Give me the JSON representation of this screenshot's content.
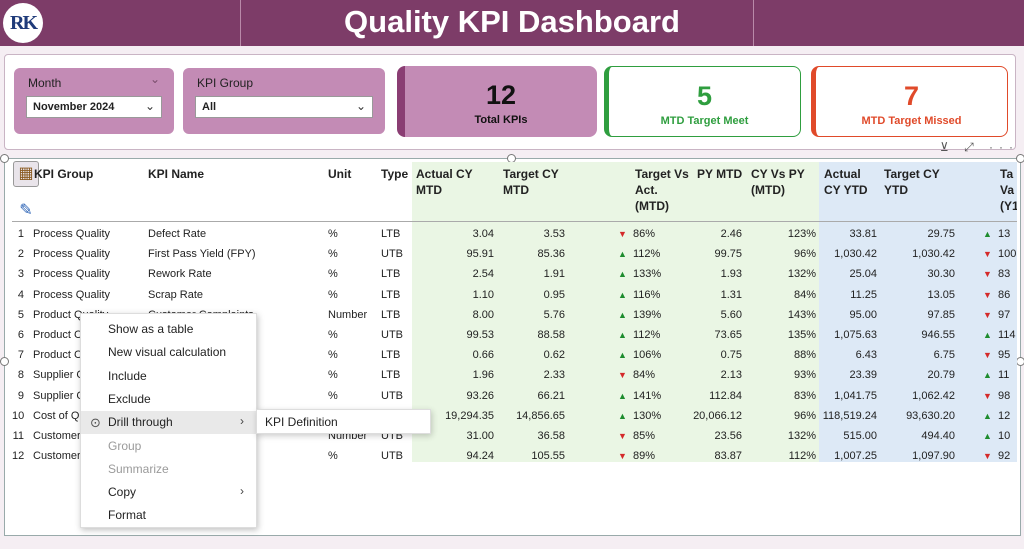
{
  "header": {
    "title": "Quality KPI Dashboard",
    "logo_text": "RK"
  },
  "slicers": {
    "month": {
      "label": "Month",
      "value": "November 2024"
    },
    "kpi_group": {
      "label": "KPI Group",
      "value": "All"
    }
  },
  "cards": {
    "total": {
      "value": "12",
      "label": "Total KPIs",
      "color": "#c38bb5"
    },
    "meet": {
      "value": "5",
      "label": "MTD Target Meet",
      "color": "#2f9e3f"
    },
    "missed": {
      "value": "7",
      "label": "MTD Target Missed",
      "color": "#e04a2a"
    }
  },
  "table": {
    "headers": {
      "kpi_group": "KPI Group",
      "kpi_name": "KPI Name",
      "unit": "Unit",
      "type": "Type",
      "actual_mtd": [
        "Actual CY",
        "MTD"
      ],
      "target_mtd": [
        "Target CY",
        "MTD"
      ],
      "tva_mtd": [
        "Target Vs",
        "Act.",
        "(MTD)"
      ],
      "py_mtd": "PY MTD",
      "cyvspy_mtd": [
        "CY Vs PY",
        "(MTD)"
      ],
      "actual_ytd": [
        "Actual",
        "CY YTD"
      ],
      "target_ytd": [
        "Target CY",
        "YTD"
      ],
      "tva_ytd": [
        "Ta",
        "Va",
        "(Y1"
      ]
    },
    "rows": [
      {
        "n": "1",
        "group": "Process Quality",
        "name": "Defect Rate",
        "unit": "%",
        "type": "LTB",
        "act": "3.04",
        "tgt": "3.53",
        "ind": "dn",
        "tva": "86%",
        "py": "2.46",
        "cvp": "123%",
        "aytd": "33.81",
        "tytd": "29.75",
        "ind2": "up",
        "tva2": "13"
      },
      {
        "n": "2",
        "group": "Process Quality",
        "name": "First Pass Yield (FPY)",
        "unit": "%",
        "type": "UTB",
        "act": "95.91",
        "tgt": "85.36",
        "ind": "up",
        "tva": "112%",
        "py": "99.75",
        "cvp": "96%",
        "aytd": "1,030.42",
        "tytd": "1,030.42",
        "ind2": "dn",
        "tva2": "100"
      },
      {
        "n": "3",
        "group": "Process Quality",
        "name": "Rework Rate",
        "unit": "%",
        "type": "LTB",
        "act": "2.54",
        "tgt": "1.91",
        "ind": "up",
        "tva": "133%",
        "py": "1.93",
        "cvp": "132%",
        "aytd": "25.04",
        "tytd": "30.30",
        "ind2": "dn",
        "tva2": "83"
      },
      {
        "n": "4",
        "group": "Process Quality",
        "name": "Scrap Rate",
        "unit": "%",
        "type": "LTB",
        "act": "1.10",
        "tgt": "0.95",
        "ind": "up",
        "tva": "116%",
        "py": "1.31",
        "cvp": "84%",
        "aytd": "11.25",
        "tytd": "13.05",
        "ind2": "dn",
        "tva2": "86"
      },
      {
        "n": "5",
        "group": "Product Quality",
        "name": "Customer Complaints",
        "unit": "Number",
        "type": "LTB",
        "act": "8.00",
        "tgt": "5.76",
        "ind": "up",
        "tva": "139%",
        "py": "5.60",
        "cvp": "143%",
        "aytd": "95.00",
        "tytd": "97.85",
        "ind2": "dn",
        "tva2": "97"
      },
      {
        "n": "6",
        "group": "Product C",
        "name": "",
        "unit": "%",
        "type": "UTB",
        "act": "99.53",
        "tgt": "88.58",
        "ind": "up",
        "tva": "112%",
        "py": "73.65",
        "cvp": "135%",
        "aytd": "1,075.63",
        "tytd": "946.55",
        "ind2": "up",
        "tva2": "114"
      },
      {
        "n": "7",
        "group": "Product C",
        "name": "",
        "unit": "%",
        "type": "LTB",
        "act": "0.66",
        "tgt": "0.62",
        "ind": "up",
        "tva": "106%",
        "py": "0.75",
        "cvp": "88%",
        "aytd": "6.43",
        "tytd": "6.75",
        "ind2": "dn",
        "tva2": "95"
      },
      {
        "n": "8",
        "group": "Supplier C",
        "name": "",
        "unit": "%",
        "type": "LTB",
        "act": "1.96",
        "tgt": "2.33",
        "ind": "dn",
        "tva": "84%",
        "py": "2.13",
        "cvp": "93%",
        "aytd": "23.39",
        "tytd": "20.79",
        "ind2": "up",
        "tva2": "11"
      },
      {
        "n": "9",
        "group": "Supplier C",
        "name": "very Rate",
        "unit": "%",
        "type": "UTB",
        "act": "93.26",
        "tgt": "66.21",
        "ind": "up",
        "tva": "141%",
        "py": "112.84",
        "cvp": "83%",
        "aytd": "1,041.75",
        "tytd": "1,062.42",
        "ind2": "dn",
        "tva2": "98"
      },
      {
        "n": "10",
        "group": "Cost of Qu",
        "name": "",
        "unit": "",
        "type": "",
        "act": "19,294.35",
        "tgt": "14,856.65",
        "ind": "up",
        "tva": "130%",
        "py": "20,066.12",
        "cvp": "96%",
        "aytd": "118,519.24",
        "tytd": "93,630.20",
        "ind2": "up",
        "tva2": "12"
      },
      {
        "n": "11",
        "group": "Customer",
        "name": "PS)",
        "unit": "Number",
        "type": "UTB",
        "act": "31.00",
        "tgt": "36.58",
        "ind": "dn",
        "tva": "85%",
        "py": "23.56",
        "cvp": "132%",
        "aytd": "515.00",
        "tytd": "494.40",
        "ind2": "up",
        "tva2": "10"
      },
      {
        "n": "12",
        "group": "Customer",
        "name": "Score (CSAT)",
        "unit": "%",
        "type": "UTB",
        "act": "94.24",
        "tgt": "105.55",
        "ind": "dn",
        "tva": "89%",
        "py": "83.87",
        "cvp": "112%",
        "aytd": "1,007.25",
        "tytd": "1,097.90",
        "ind2": "dn",
        "tva2": "92"
      }
    ]
  },
  "context_menu": {
    "items": [
      {
        "label": "Show as a table",
        "disabled": false
      },
      {
        "label": "New visual calculation",
        "disabled": false
      },
      {
        "label": "Include",
        "disabled": false
      },
      {
        "label": "Exclude",
        "disabled": false
      },
      {
        "label": "Drill through",
        "disabled": false
      },
      {
        "label": "Group",
        "disabled": true
      },
      {
        "label": "Summarize",
        "disabled": true
      },
      {
        "label": "Copy",
        "disabled": false
      },
      {
        "label": "Format",
        "disabled": false
      }
    ],
    "submenu": "KPI Definition"
  },
  "visual_tools": "⊻ ⤢ ···"
}
